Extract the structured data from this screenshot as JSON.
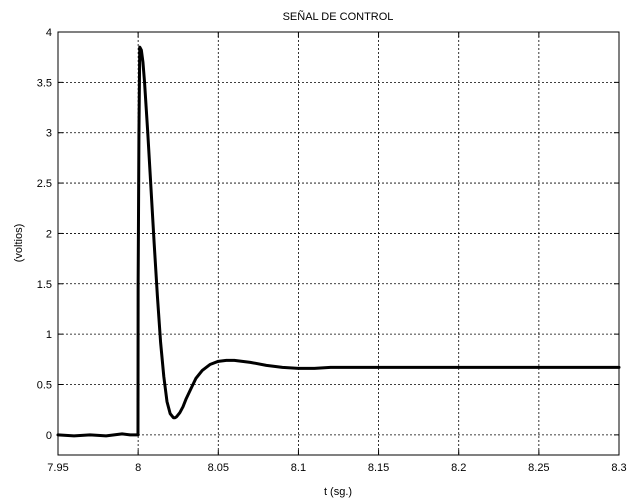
{
  "chart_data": {
    "type": "line",
    "title": "SEÑAL DE CONTROL",
    "xlabel": "t (sg.)",
    "ylabel": "(voltios)",
    "xlim": [
      7.95,
      8.3
    ],
    "ylim": [
      -0.2,
      4
    ],
    "grid": true,
    "x_ticks": [
      "7.95",
      "8",
      "8.05",
      "8.1",
      "8.15",
      "8.2",
      "8.25",
      "8.3"
    ],
    "y_ticks": [
      "0",
      "0.5",
      "1",
      "1.5",
      "2",
      "2.5",
      "3",
      "3.5",
      "4"
    ],
    "series": [
      {
        "color": "#000000",
        "x": [
          7.95,
          7.96,
          7.97,
          7.98,
          7.99,
          7.995,
          7.9999,
          8.0,
          8.0005,
          8.001,
          8.002,
          8.003,
          8.004,
          8.005,
          8.006,
          8.008,
          8.01,
          8.012,
          8.014,
          8.016,
          8.018,
          8.02,
          8.022,
          8.023,
          8.024,
          8.026,
          8.028,
          8.03,
          8.033,
          8.036,
          8.04,
          8.045,
          8.05,
          8.055,
          8.06,
          8.065,
          8.07,
          8.08,
          8.09,
          8.1,
          8.11,
          8.12,
          8.13,
          8.14,
          8.15,
          8.2,
          8.25,
          8.3
        ],
        "y": [
          0.0,
          -0.01,
          0.0,
          -0.01,
          0.01,
          0.0,
          0.0,
          1.5,
          3.0,
          3.85,
          3.82,
          3.7,
          3.5,
          3.25,
          3.0,
          2.45,
          1.9,
          1.38,
          0.92,
          0.58,
          0.33,
          0.21,
          0.17,
          0.17,
          0.18,
          0.22,
          0.28,
          0.36,
          0.46,
          0.56,
          0.64,
          0.7,
          0.73,
          0.74,
          0.74,
          0.73,
          0.72,
          0.69,
          0.67,
          0.66,
          0.66,
          0.67,
          0.67,
          0.67,
          0.67,
          0.67,
          0.67,
          0.67
        ]
      }
    ]
  }
}
